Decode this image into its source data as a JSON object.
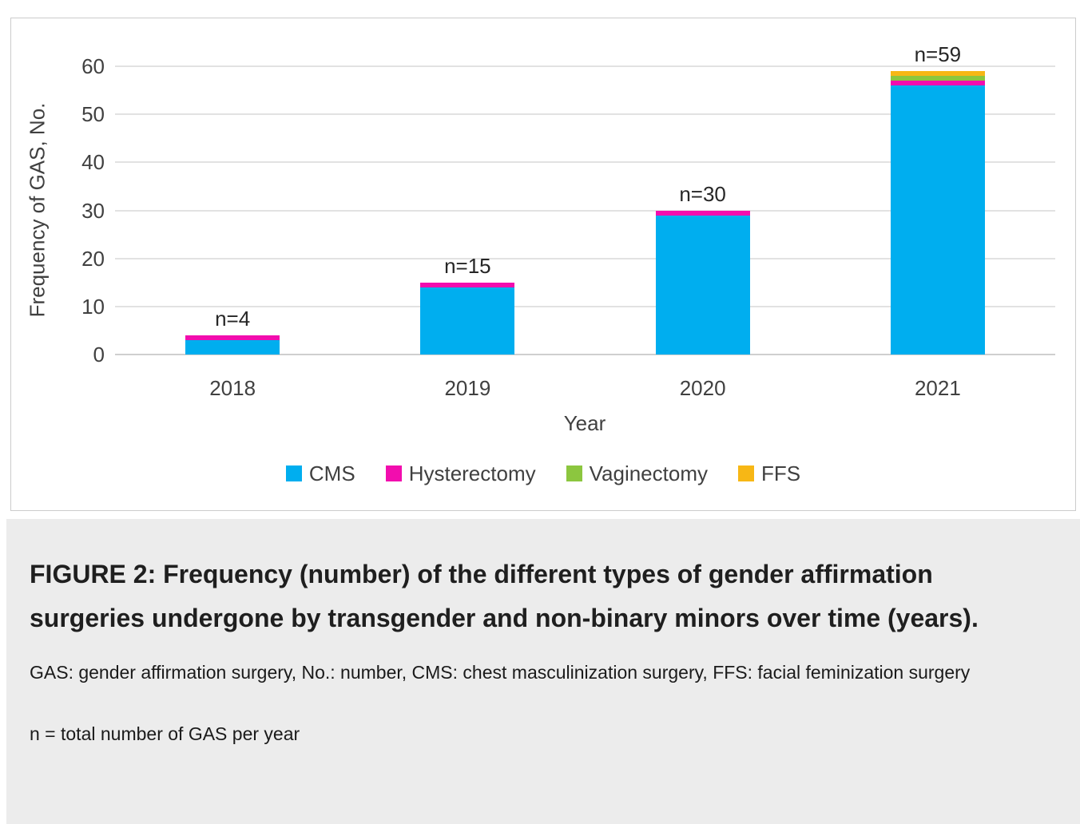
{
  "chart_data": {
    "type": "bar",
    "stacked": true,
    "categories": [
      "2018",
      "2019",
      "2020",
      "2021"
    ],
    "series": [
      {
        "name": "CMS",
        "color": "#00AEEF",
        "values": [
          3,
          14,
          29,
          56
        ]
      },
      {
        "name": "Hysterectomy",
        "color": "#F20DAE",
        "values": [
          1,
          1,
          1,
          1
        ]
      },
      {
        "name": "Vaginectomy",
        "color": "#8CC63F",
        "values": [
          0,
          0,
          0,
          1
        ]
      },
      {
        "name": "FFS",
        "color": "#F7B715",
        "values": [
          0,
          0,
          0,
          1
        ]
      }
    ],
    "totals": [
      4,
      15,
      30,
      59
    ],
    "bar_labels": [
      "n=4",
      "n=15",
      "n=30",
      "n=59"
    ],
    "xlabel": "Year",
    "ylabel": "Frequency of GAS, No.",
    "yticks": [
      0,
      10,
      20,
      30,
      40,
      50,
      60
    ],
    "ylim": [
      0,
      70
    ],
    "grid": "horizontal",
    "legend_position": "bottom"
  },
  "caption": {
    "title": "FIGURE 2: Frequency (number) of the different types of gender affirmation surgeries undergone by transgender and non-binary minors over time (years).",
    "abbreviations": "GAS: gender affirmation surgery, No.: number, CMS: chest masculinization surgery, FFS: facial feminization surgery",
    "note": "n = total number of GAS per year"
  }
}
